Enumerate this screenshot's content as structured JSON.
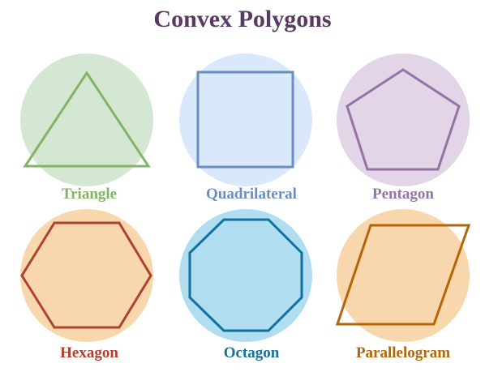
{
  "title": "Convex Polygons",
  "colors": {
    "title": "#5a3a63"
  },
  "shapes": [
    {
      "key": "triangle",
      "label": "Triangle",
      "circle_fill": "#d4e7d2",
      "stroke": "#82b366"
    },
    {
      "key": "quadrilateral",
      "label": "Quadrilateral",
      "circle_fill": "#dae8fc",
      "stroke": "#6c8ebf"
    },
    {
      "key": "pentagon",
      "label": "Pentagon",
      "circle_fill": "#e1d5e7",
      "stroke": "#9673a6"
    },
    {
      "key": "hexagon",
      "label": "Hexagon",
      "circle_fill": "#f9d7ad",
      "stroke": "#ae4132"
    },
    {
      "key": "octagon",
      "label": "Octagon",
      "circle_fill": "#b1ddf0",
      "stroke": "#10739e"
    },
    {
      "key": "parallelogram",
      "label": "Parallelogram",
      "circle_fill": "#f9d7ad",
      "stroke": "#b46504"
    }
  ]
}
